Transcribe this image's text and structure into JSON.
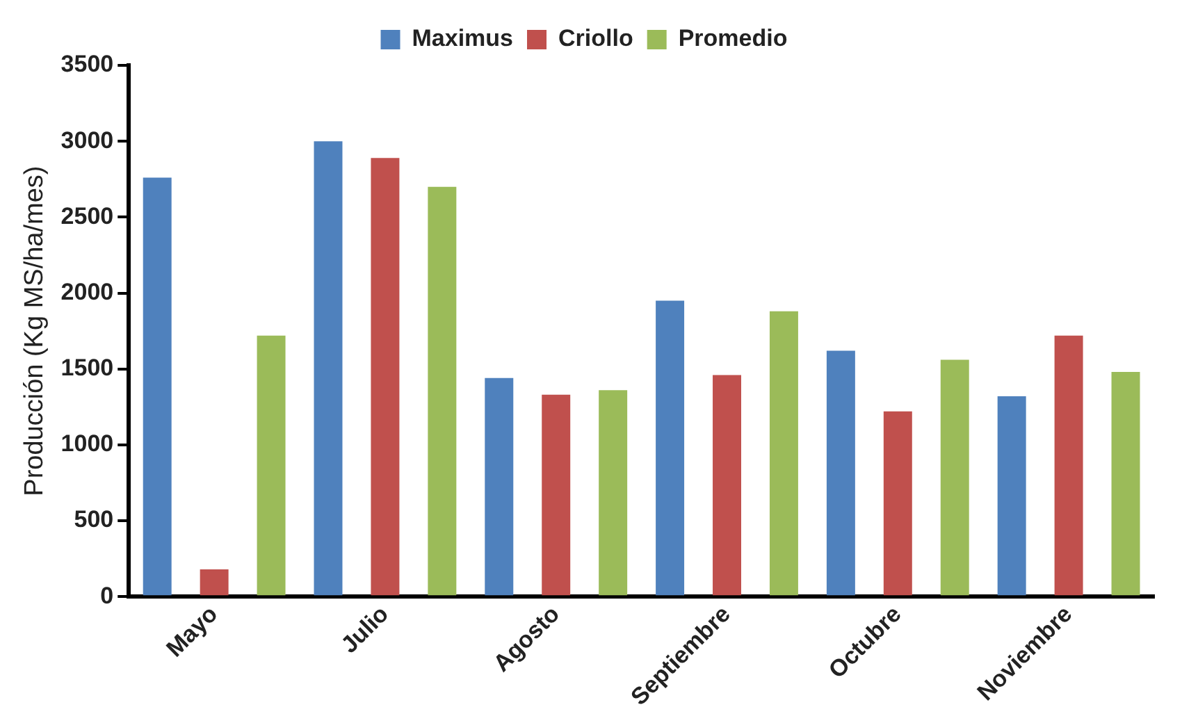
{
  "chart_data": {
    "type": "bar",
    "ylabel": "Producción (Kg MS/ha/mes)",
    "categories": [
      "Mayo",
      "Julio",
      "Agosto",
      "Septiembre",
      "Octubre",
      "Noviembre"
    ],
    "series": [
      {
        "name": "Maximus",
        "color": "#4f81bd",
        "values": [
          2760,
          3000,
          1440,
          1950,
          1620,
          1320
        ]
      },
      {
        "name": "Criollo",
        "color": "#c0504d",
        "values": [
          180,
          2890,
          1330,
          1460,
          1220,
          1720
        ]
      },
      {
        "name": "Promedio",
        "color": "#9bbb59",
        "values": [
          1720,
          2700,
          1360,
          1880,
          1560,
          1480
        ]
      }
    ],
    "ylim": [
      0,
      3500
    ],
    "yticks": [
      0,
      500,
      1000,
      1500,
      2000,
      2500,
      3000,
      3500
    ],
    "grid": false,
    "legend": "top"
  }
}
